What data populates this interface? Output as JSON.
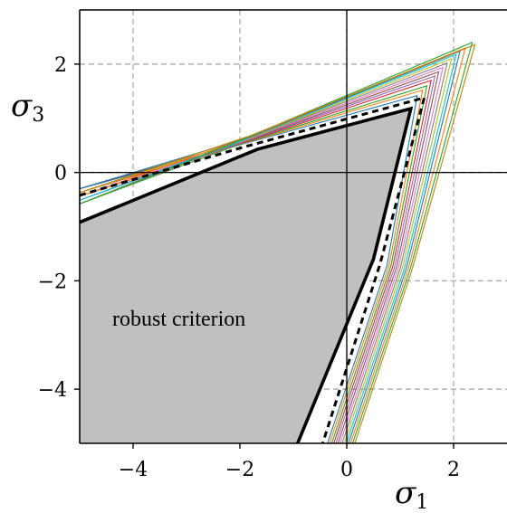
{
  "chart_data": {
    "type": "line",
    "xlabel": "σ₁",
    "ylabel": "σ₃",
    "xlabel_symbol": "σ",
    "xlabel_sub": "1",
    "ylabel_symbol": "σ",
    "ylabel_sub": "3",
    "xlim": [
      -5,
      3
    ],
    "ylim": [
      -5,
      3
    ],
    "xticks": [
      -4,
      -2,
      0,
      2
    ],
    "yticks": [
      -4,
      -2,
      0,
      2
    ],
    "xtick_labels": [
      "−4",
      "−2",
      "0",
      "2"
    ],
    "ytick_labels": [
      "−4",
      "−2",
      "0",
      "2"
    ],
    "grid": true,
    "annotation": "robust criterion",
    "robust_region": {
      "fill": "#c0c0c0",
      "points": [
        [
          -5,
          -0.92
        ],
        [
          -1.67,
          0.43
        ],
        [
          1.2,
          1.18
        ],
        [
          0.5,
          -1.6
        ],
        [
          -0.92,
          -5
        ],
        [
          -5,
          -5
        ]
      ]
    },
    "dashed_boundary": {
      "points": [
        [
          -5,
          -0.42
        ],
        [
          -2.0,
          0.45
        ],
        [
          1.45,
          1.38
        ],
        [
          0.62,
          -1.7
        ],
        [
          -0.45,
          -5
        ]
      ]
    },
    "ensemble_apices": [
      [
        1.32,
        1.42
      ],
      [
        1.42,
        1.52
      ],
      [
        1.5,
        1.6
      ],
      [
        1.58,
        1.7
      ],
      [
        1.65,
        1.78
      ],
      [
        1.72,
        1.86
      ],
      [
        1.8,
        1.94
      ],
      [
        1.88,
        2.02
      ],
      [
        1.96,
        2.1
      ],
      [
        2.05,
        2.18
      ],
      [
        2.12,
        2.24
      ],
      [
        2.22,
        2.3
      ],
      [
        2.35,
        2.4
      ],
      [
        2.4,
        2.36
      ]
    ],
    "ensemble_colors": [
      "#1f77b4",
      "#ff7f0e",
      "#2ca02c",
      "#d62728",
      "#9467bd",
      "#8c564b",
      "#e377c2",
      "#7f7f7f",
      "#bcbd22",
      "#17becf",
      "#1f77b4",
      "#ff7f0e",
      "#2ca02c",
      "#b8860b"
    ]
  }
}
